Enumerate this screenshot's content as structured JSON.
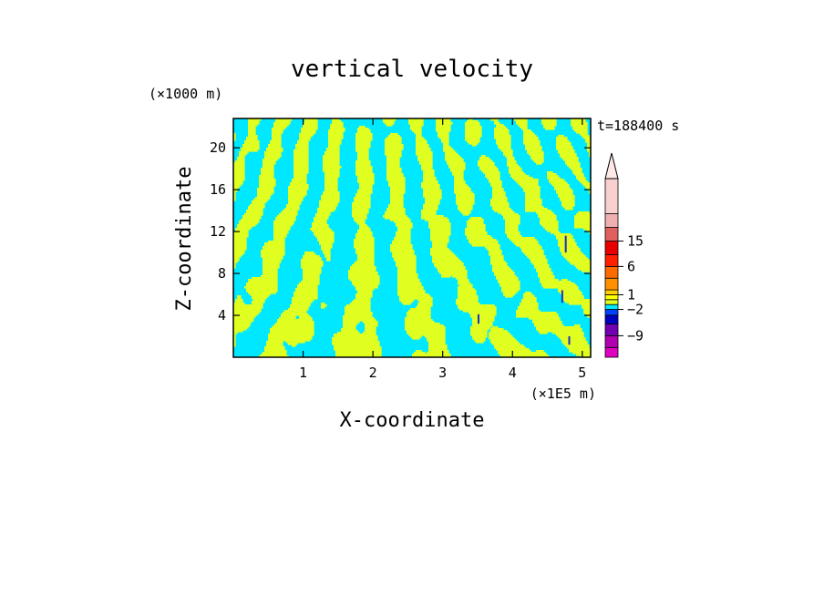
{
  "chart_data": {
    "type": "heatmap",
    "title": "vertical velocity",
    "xlabel": "X-coordinate",
    "ylabel": "Z-coordinate",
    "x_unit_label": "(×1E5 m)",
    "y_unit_label": "(×1000 m)",
    "time_label": "t=188400 s",
    "xlim": [
      0,
      5.12
    ],
    "ylim": [
      0,
      22.8
    ],
    "x_ticks": [
      1,
      2,
      3,
      4,
      5
    ],
    "y_ticks": [
      4,
      8,
      12,
      16,
      20
    ],
    "grid": false,
    "colorbar": {
      "levels": [
        -12,
        -9,
        -6,
        -3,
        -2,
        -1,
        0,
        1,
        2,
        3,
        6,
        9,
        12,
        15,
        18,
        21
      ],
      "colors": [
        "#e000c0",
        "#b000b0",
        "#7000b0",
        "#0000c0",
        "#0040ff",
        "#00e8ff",
        "#e0ff20",
        "#ffff00",
        "#ffd000",
        "#ff9000",
        "#ff6a00",
        "#ff2000",
        "#e80000",
        "#e06060",
        "#f0b0b0",
        "#f8d0d0"
      ],
      "labels": [
        "15",
        "6",
        "1",
        "-2",
        "-9"
      ],
      "extend": "max",
      "extend_color": "#ffe8e8"
    },
    "dominant_values": {
      "field_range": [
        -2,
        1
      ],
      "primary_colors": [
        "#00e8ff",
        "#e0ff20"
      ]
    }
  }
}
